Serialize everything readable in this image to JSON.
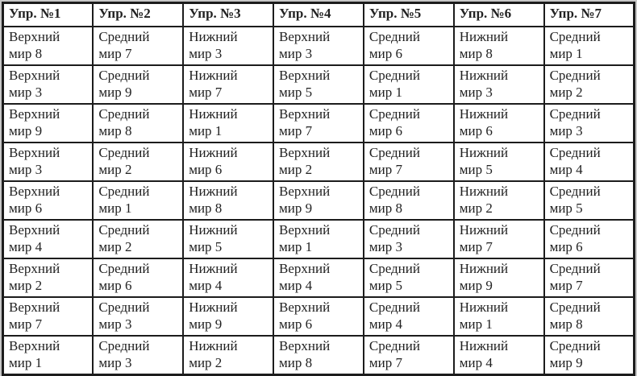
{
  "colors": {
    "border": "#1c1c1c",
    "text": "#222222",
    "cell_background": "#ffffff",
    "page_margin": "#c7c7c7"
  },
  "table": {
    "columns": [
      {
        "header": "Упр. №1",
        "cells": [
          "Верхний\nмир 8",
          "Верхний\nмир 3",
          "Верхний\nмир 9",
          "Верхний\nмир 3",
          "Верхний\nмир 6",
          "Верхний\nмир 4",
          "Верхний\nмир 2",
          "Верхний\nмир 7",
          "Верхний\nмир 1"
        ]
      },
      {
        "header": "Упр. №2",
        "cells": [
          "Средний\nмир 7",
          "Средний\nмир 9",
          "Средний\nмир 8",
          "Средний\nмир 2",
          "Средний\nмир 1",
          "Средний\nмир 2",
          "Средний\nмир 6",
          "Средний\nмир 3",
          "Средний\nмир 3"
        ]
      },
      {
        "header": "Упр. №3",
        "cells": [
          "Нижний\nмир 3",
          "Нижний\nмир 7",
          "Нижний\nмир 1",
          "Нижний\nмир 6",
          "Нижний\nмир 8",
          "Нижний\nмир 5",
          "Нижний\nмир 4",
          "Нижний\nмир 9",
          "Нижний\nмир 2"
        ]
      },
      {
        "header": "Упр. №4",
        "cells": [
          "Верхний\nмир 3",
          "Верхний\nмир 5",
          "Верхний\nмир 7",
          "Верхний\nмир 2",
          "Верхний\nмир 9",
          "Верхний\nмир 1",
          "Верхний\nмир 4",
          "Верхний\nмир 6",
          "Верхний\nмир 8"
        ]
      },
      {
        "header": "Упр. №5",
        "cells": [
          "Средний\nмир 6",
          "Средний\nмир 1",
          "Средний\nмир 6",
          "Средний\nмир 7",
          "Средний\nмир 8",
          "Средний\nмир 3",
          "Средний\nмир 5",
          "Средний\nмир 4",
          "Средний\nмир 7"
        ]
      },
      {
        "header": "Упр. №6",
        "cells": [
          "Нижний\nмир 8",
          "Нижний\nмир 3",
          "Нижний\nмир 6",
          "Нижний\nмир 5",
          "Нижний\nмир 2",
          "Нижний\nмир 7",
          "Нижний\nмир 9",
          "Нижний\nмир 1",
          "Нижний\nмир 4"
        ]
      },
      {
        "header": "Упр. №7",
        "cells": [
          "Средний\nмир 1",
          "Средний\nмир 2",
          "Средний\nмир 3",
          "Средний\nмир 4",
          "Средний\nмир 5",
          "Средний\nмир 6",
          "Средний\nмир 7",
          "Средний\nмир 8",
          "Средний\nмир 9"
        ]
      }
    ]
  }
}
